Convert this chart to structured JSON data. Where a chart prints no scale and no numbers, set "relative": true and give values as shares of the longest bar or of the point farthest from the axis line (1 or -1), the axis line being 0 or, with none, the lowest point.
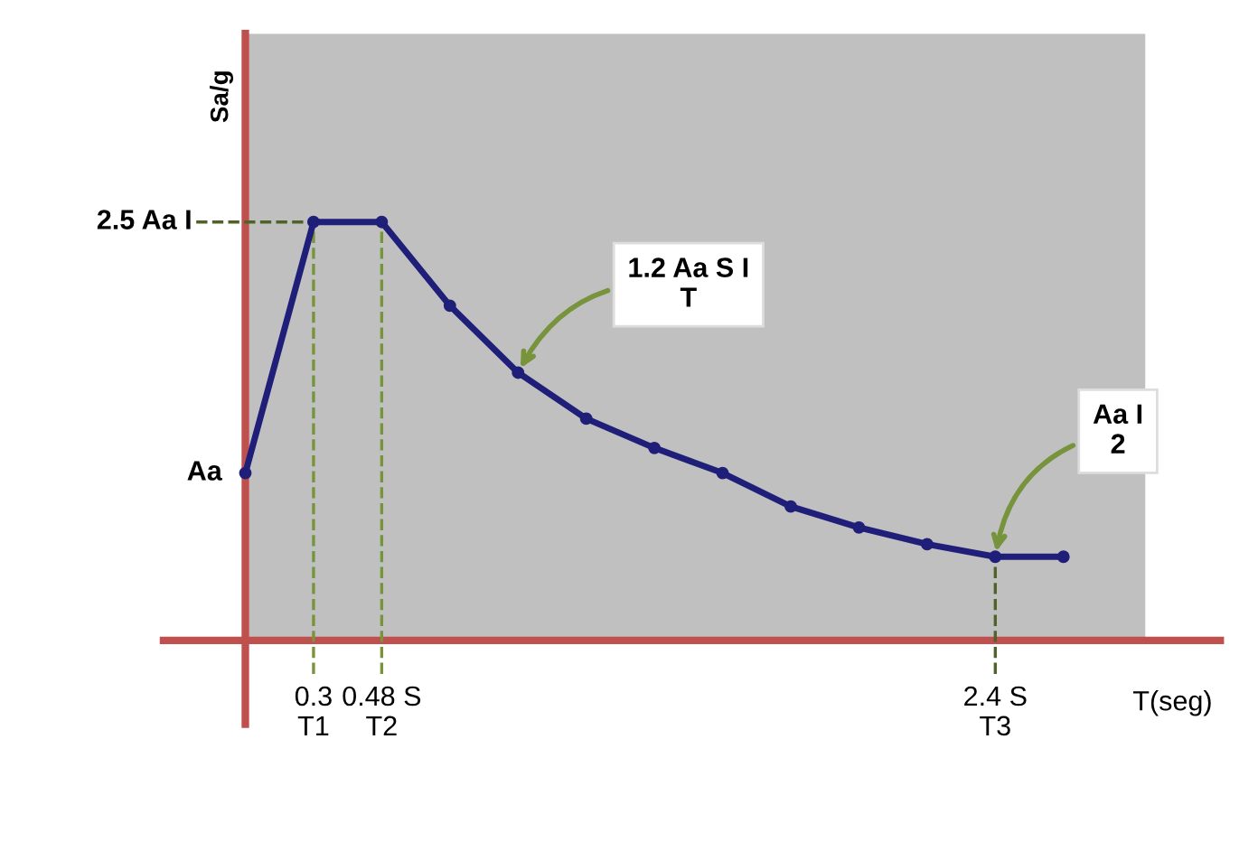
{
  "chart_data": {
    "type": "line",
    "xlabel": "T(seg)",
    "ylabel": "Sa/g",
    "relative": true,
    "categories": [
      null,
      "0.3\nT1",
      "0.48 S\nT2",
      null,
      null,
      null,
      null,
      null,
      null,
      null,
      null,
      "2.4 S\nT3",
      null
    ],
    "series": [
      {
        "color": "#1f1f7a",
        "values": [
          0.4,
          1,
          1,
          0.8,
          0.64,
          0.53,
          0.46,
          0.4,
          0.32,
          0.27,
          0.23,
          0.2,
          0.2
        ]
      }
    ],
    "marker": "circle",
    "line_style": "solid",
    "ref_lines": [
      {
        "axis": "y",
        "value": 1,
        "label": "2.5 Aa I",
        "color": "#4f6228",
        "line_style": "dashed"
      },
      {
        "axis": "x",
        "value": "0.3\nT1",
        "color": "#77933c",
        "line_style": "dashed"
      },
      {
        "axis": "x",
        "value": "0.48 S\nT2",
        "color": "#77933c",
        "line_style": "dashed"
      },
      {
        "axis": "x",
        "value": "2.4 S\nT3",
        "color": "#4f6228",
        "line_style": "dashed"
      }
    ],
    "annotations": [
      "Aa",
      "1.2 Aa S I\nT",
      {
        "text": "Aa I\n2",
        "x": "2.4 S\nT3",
        "y": 0.2
      }
    ]
  }
}
